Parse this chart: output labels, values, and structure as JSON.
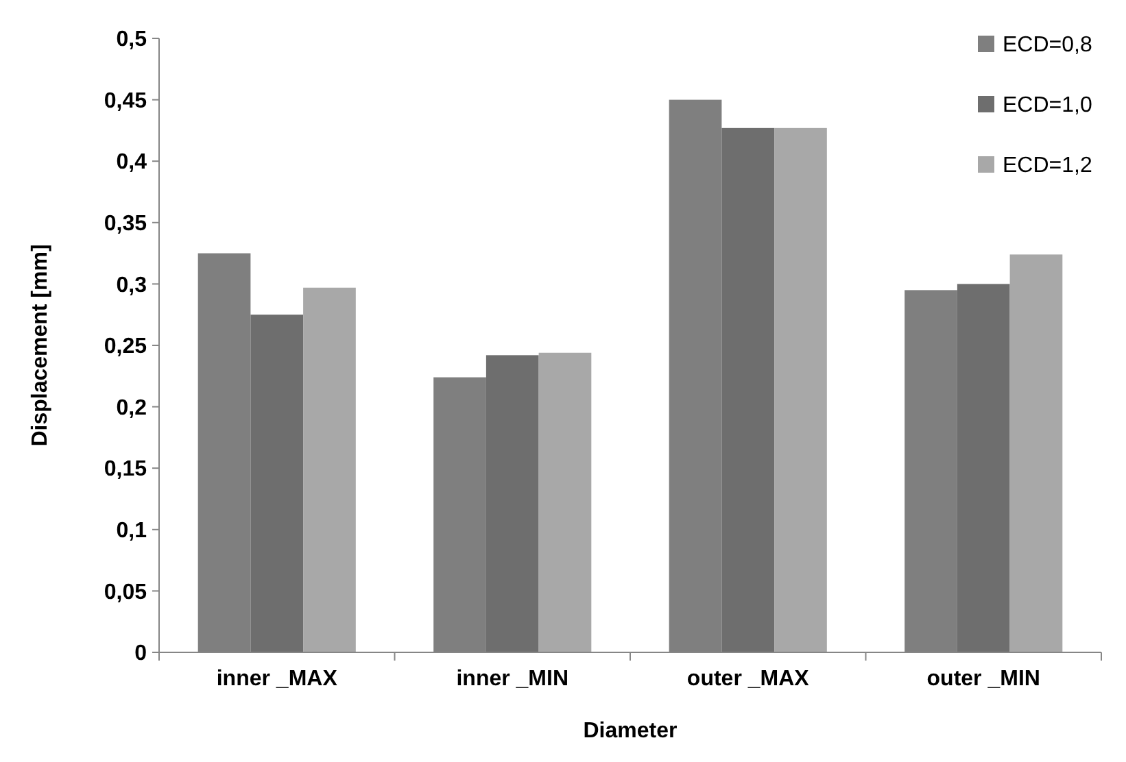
{
  "chart_data": {
    "type": "bar",
    "xlabel": "Diameter",
    "ylabel": "Displacement [mm]",
    "categories": [
      "inner _MAX",
      "inner _MIN",
      "outer _MAX",
      "outer _MIN"
    ],
    "series": [
      {
        "name": "ECD=0,8",
        "color": "#7f7f7f",
        "values": [
          0.325,
          0.224,
          0.45,
          0.295
        ]
      },
      {
        "name": "ECD=1,0",
        "color": "#6e6e6e",
        "values": [
          0.275,
          0.242,
          0.427,
          0.3
        ]
      },
      {
        "name": "ECD=1,2",
        "color": "#a8a8a8",
        "values": [
          0.297,
          0.244,
          0.427,
          0.324
        ]
      }
    ],
    "ylim": [
      0,
      0.5
    ],
    "yticks": [
      {
        "value": 0,
        "label": "0"
      },
      {
        "value": 0.05,
        "label": "0,05"
      },
      {
        "value": 0.1,
        "label": "0,1"
      },
      {
        "value": 0.15,
        "label": "0,15"
      },
      {
        "value": 0.2,
        "label": "0,2"
      },
      {
        "value": 0.25,
        "label": "0,25"
      },
      {
        "value": 0.3,
        "label": "0,3"
      },
      {
        "value": 0.35,
        "label": "0,35"
      },
      {
        "value": 0.4,
        "label": "0,4"
      },
      {
        "value": 0.45,
        "label": "0,45"
      },
      {
        "value": 0.5,
        "label": "0,5"
      }
    ],
    "grid": false,
    "legend": "top right"
  }
}
